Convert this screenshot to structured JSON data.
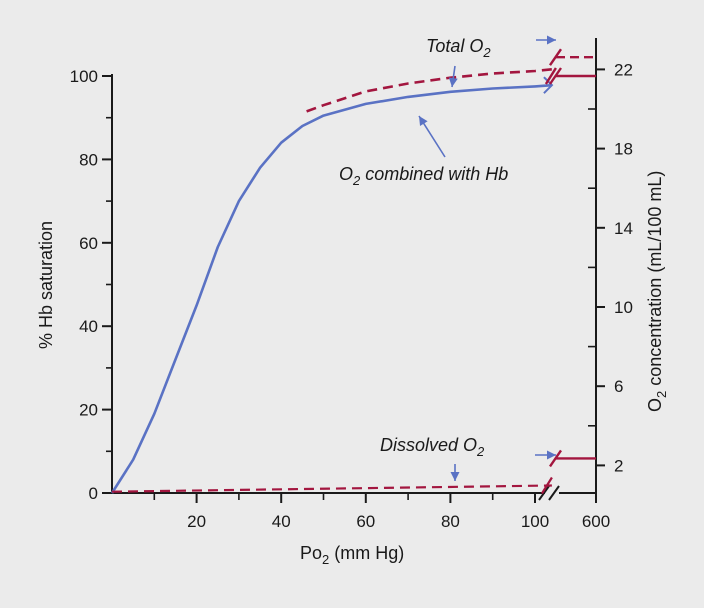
{
  "colors": {
    "background": "#ebebeb",
    "hb_curve": "#5a72c4",
    "total_dissolved": "#a3163f",
    "axis": "#1a1a1a"
  },
  "chart_data": {
    "type": "line",
    "title": "",
    "xlabel_main": "Po",
    "xlabel_sub": "2",
    "xlabel_unit": " (mm Hg)",
    "ylabel_left": "% Hb saturation",
    "ylabel_right_main": "O",
    "ylabel_right_sub": "2",
    "ylabel_right_unit": " concentration (mL/100 mL)",
    "x_ticks": [
      "20",
      "40",
      "60",
      "80",
      "100"
    ],
    "x_break_tick": "600",
    "y_left_ticks": [
      "0",
      "20",
      "40",
      "60",
      "80",
      "100"
    ],
    "y_left_lim": [
      0,
      100
    ],
    "y_right_ticks": [
      "2",
      "6",
      "10",
      "14",
      "18",
      "22"
    ],
    "y_right_lim": [
      0,
      23
    ],
    "xlim": [
      0,
      104
    ],
    "series": [
      {
        "key": "hb",
        "x": [
          0,
          5,
          10,
          15,
          20,
          25,
          30,
          35,
          40,
          45,
          50,
          60,
          70,
          80,
          90,
          100,
          104
        ],
        "y": [
          0,
          8,
          19,
          32,
          45,
          59,
          70,
          78,
          84,
          88,
          90.5,
          93.3,
          95,
          96.2,
          97,
          97.5,
          97.8
        ]
      },
      {
        "key": "total",
        "x": [
          46,
          50,
          60,
          70,
          80,
          90,
          100,
          104
        ],
        "y": [
          91.5,
          93,
          96.3,
          98.2,
          99.6,
          100.6,
          101.2,
          101.6
        ],
        "break_value": 104.5,
        "break_value_600": 100
      },
      {
        "key": "dissolved",
        "x": [
          0,
          104
        ],
        "y": [
          0.3,
          1.8
        ],
        "break_value": 8.3
      }
    ],
    "annotations": [
      {
        "key": "total",
        "main": "Total O",
        "sub": "2",
        "suffix": ""
      },
      {
        "key": "hb",
        "main": "O",
        "sub": "2",
        "suffix": " combined with Hb"
      },
      {
        "key": "dissolved",
        "main": "Dissolved O",
        "sub": "2",
        "suffix": ""
      }
    ]
  }
}
